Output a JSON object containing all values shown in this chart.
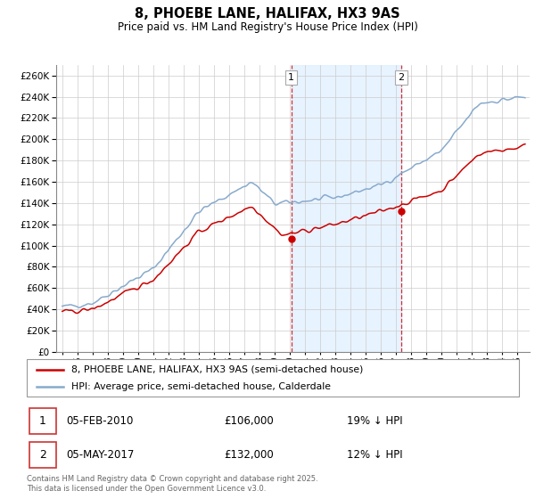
{
  "title": "8, PHOEBE LANE, HALIFAX, HX3 9AS",
  "subtitle": "Price paid vs. HM Land Registry's House Price Index (HPI)",
  "ylim": [
    0,
    270000
  ],
  "yticks": [
    0,
    20000,
    40000,
    60000,
    80000,
    100000,
    120000,
    140000,
    160000,
    180000,
    200000,
    220000,
    240000,
    260000
  ],
  "xlim_start": 1994.6,
  "xlim_end": 2025.8,
  "purchase1_date": 2010.09,
  "purchase1_price": 106000,
  "purchase2_date": 2017.34,
  "purchase2_price": 132000,
  "legend_line1": "8, PHOEBE LANE, HALIFAX, HX3 9AS (semi-detached house)",
  "legend_line2": "HPI: Average price, semi-detached house, Calderdale",
  "footer": "Contains HM Land Registry data © Crown copyright and database right 2025.\nThis data is licensed under the Open Government Licence v3.0.",
  "line_color_property": "#cc0000",
  "line_color_hpi": "#88aacc",
  "shade_color": "#ddeeff",
  "vline_color": "#cc0000",
  "xlabel_years": [
    1995,
    1996,
    1997,
    1998,
    1999,
    2000,
    2001,
    2002,
    2003,
    2004,
    2005,
    2006,
    2007,
    2008,
    2009,
    2010,
    2011,
    2012,
    2013,
    2014,
    2015,
    2016,
    2017,
    2018,
    2019,
    2020,
    2021,
    2022,
    2023,
    2024,
    2025
  ]
}
